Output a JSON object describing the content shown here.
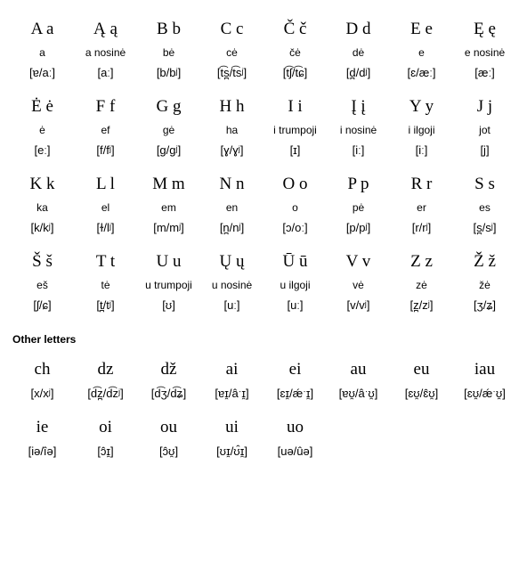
{
  "mainRows": [
    {
      "letters": [
        "A a",
        "Ą ą",
        "B b",
        "C c",
        "Č č",
        "D d",
        "E e",
        "Ę ę"
      ],
      "names": [
        "a",
        "a nosinė",
        "bė",
        "cė",
        "čė",
        "dė",
        "e",
        "e nosinė"
      ],
      "ipas": [
        "[ɐ/aː]",
        "[aː]",
        "[b/bʲ]",
        "[t͡s̪/t͡sʲ]",
        "[t͡ʃ/t͡ɕ]",
        "[d̪/dʲ]",
        "[ɛ/æː]",
        "[æː]"
      ]
    },
    {
      "letters": [
        "Ė ė",
        "F f",
        "G g",
        "H h",
        "I i",
        "Į į",
        "Y y",
        "J j"
      ],
      "names": [
        "ė",
        "ef",
        "gė",
        "ha",
        "i trumpoji",
        "i nosinė",
        "i ilgoji",
        "jot"
      ],
      "ipas": [
        "[eː]",
        "[f/fʲ]",
        "[g/gʲ]",
        "[ɣ/ɣʲ]",
        "[ɪ]",
        "[iː]",
        "[iː]",
        "[j]"
      ]
    },
    {
      "letters": [
        "K k",
        "L l",
        "M m",
        "N n",
        "O o",
        "P p",
        "R r",
        "S s"
      ],
      "names": [
        "ka",
        "el",
        "em",
        "en",
        "o",
        "pė",
        "er",
        "es"
      ],
      "ipas": [
        "[k/kʲ]",
        "[ɫ/lʲ]",
        "[m/mʲ]",
        "[n̪/nʲ]",
        "[ɔ/oː]",
        "[p/pʲ]",
        "[r/rʲ]",
        "[s̪/sʲ]"
      ]
    },
    {
      "letters": [
        "Š š",
        "T t",
        "U u",
        "Ų ų",
        "Ū ū",
        "V v",
        "Z z",
        "Ž ž"
      ],
      "names": [
        "eš",
        "tė",
        "u trumpoji",
        "u nosinė",
        "u ilgoji",
        "vė",
        "zė",
        "žė"
      ],
      "ipas": [
        "[ʃ/ɕ]",
        "[t̪/tʲ]",
        "[ʊ]",
        "[uː]",
        "[uː]",
        "[v/vʲ]",
        "[z̪/zʲ]",
        "[ʒ/ʑ]"
      ]
    }
  ],
  "otherHeader": "Other letters",
  "otherRows": [
    {
      "letters": [
        "ch",
        "dz",
        "dž",
        "ai",
        "ei",
        "au",
        "eu",
        "iau"
      ],
      "ipas": [
        "[x/xʲ]",
        "[d͡z̪/d͡zʲ]",
        "[d͡ʒ/d͡ʑ]",
        "[ɐɪ̯/âˑɪ̯]",
        "[ɛɪ̯/ǽˑɪ̯]",
        "[ɐʊ̯/âˑʊ̯]",
        "[ɛʊ̯/ɛ̂ʊ̯]",
        "[ɛʊ̯/ǽˑʊ̯]"
      ]
    },
    {
      "letters": [
        "ie",
        "oi",
        "ou",
        "ui",
        "uo",
        "",
        "",
        ""
      ],
      "ipas": [
        "[iə/îə]",
        "[ɔ̂ɪ̯]",
        "[ɔ̂ʊ̯]",
        "[ʊɪ̯/ʊ̂ɪ̯]",
        "[uə/ûə]",
        "",
        "",
        ""
      ]
    }
  ]
}
